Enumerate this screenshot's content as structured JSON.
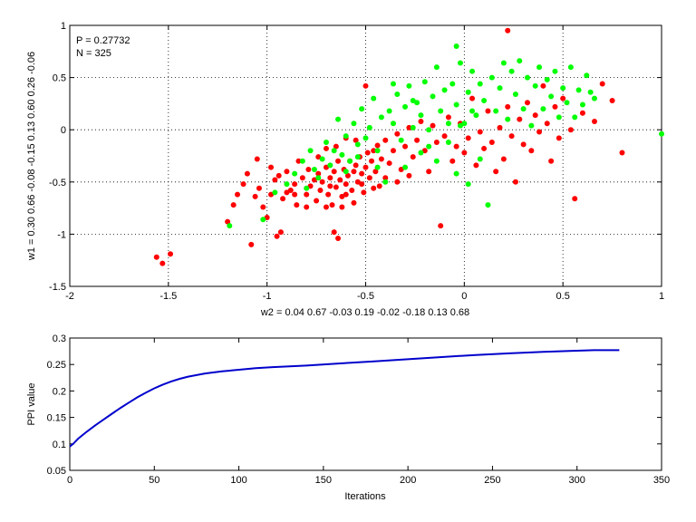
{
  "chart_data": [
    {
      "type": "scatter",
      "annotation_p": "P = 0.27732",
      "annotation_n": "N = 325",
      "xlabel": "w2 = 0.04  0.67  -0.03  0.19  -0.02  -0.18  0.13  0.68",
      "ylabel": "w1 = 0.30  0.66  -0.08  -0.15  0.13  0.60  0.26  -0.06",
      "xlim": [
        -2,
        1
      ],
      "ylim": [
        -1.5,
        1
      ],
      "x_ticks": [
        "-2",
        "-1.5",
        "-1",
        "-0.5",
        "0",
        "0.5",
        "1"
      ],
      "y_ticks": [
        "-1.5",
        "-1",
        "-0.5",
        "0",
        "0.5",
        "1"
      ],
      "grid": true,
      "series": [
        {
          "color": "#ff0000",
          "points": [
            [
              -1.56,
              -1.22
            ],
            [
              -1.53,
              -1.28
            ],
            [
              -1.49,
              -1.19
            ],
            [
              -1.2,
              -0.88
            ],
            [
              -1.17,
              -0.72
            ],
            [
              -1.15,
              -0.62
            ],
            [
              -1.12,
              -0.52
            ],
            [
              -1.1,
              -0.42
            ],
            [
              -1.08,
              -1.1
            ],
            [
              -1.05,
              -0.28
            ],
            [
              -1.04,
              -0.56
            ],
            [
              -1.02,
              -0.74
            ],
            [
              -1.0,
              -0.84
            ],
            [
              -0.98,
              -0.36
            ],
            [
              -0.96,
              -0.48
            ],
            [
              -0.95,
              -1.02
            ],
            [
              -0.93,
              -0.98
            ],
            [
              -0.92,
              -0.66
            ],
            [
              -0.9,
              -0.4
            ],
            [
              -0.88,
              -0.58
            ],
            [
              -0.86,
              -0.52
            ],
            [
              -0.85,
              -0.72
            ],
            [
              -0.84,
              -0.3
            ],
            [
              -0.82,
              -0.46
            ],
            [
              -0.8,
              -0.62
            ],
            [
              -0.79,
              -0.38
            ],
            [
              -0.78,
              -0.54
            ],
            [
              -0.76,
              -0.48
            ],
            [
              -0.75,
              -0.68
            ],
            [
              -0.74,
              -0.42
            ],
            [
              -0.73,
              -0.58
            ],
            [
              -0.72,
              -0.5
            ],
            [
              -0.7,
              -0.36
            ],
            [
              -0.69,
              -0.62
            ],
            [
              -0.68,
              -0.46
            ],
            [
              -0.67,
              -0.72
            ],
            [
              -0.66,
              -0.4
            ],
            [
              -0.65,
              -0.55
            ],
            [
              -0.64,
              -0.3
            ],
            [
              -0.63,
              -0.48
            ],
            [
              -0.62,
              -0.64
            ],
            [
              -0.61,
              -0.38
            ],
            [
              -0.6,
              -0.52
            ],
            [
              -0.59,
              -0.44
            ],
            [
              -0.58,
              -0.3
            ],
            [
              -0.57,
              -0.58
            ],
            [
              -0.56,
              -0.4
            ],
            [
              -0.55,
              -0.34
            ],
            [
              -0.54,
              -0.5
            ],
            [
              -0.53,
              -0.26
            ],
            [
              -0.52,
              -0.42
            ],
            [
              -0.51,
              -0.6
            ],
            [
              -0.5,
              -0.36
            ],
            [
              -0.49,
              -0.22
            ],
            [
              -0.48,
              -0.46
            ],
            [
              -0.47,
              -0.3
            ],
            [
              -0.46,
              -0.2
            ],
            [
              -0.45,
              -0.4
            ],
            [
              -0.44,
              -0.15
            ],
            [
              -0.43,
              -0.54
            ],
            [
              -0.42,
              -0.28
            ],
            [
              -0.4,
              -0.1
            ],
            [
              -0.38,
              -0.32
            ],
            [
              -0.36,
              -0.2
            ],
            [
              -0.34,
              -0.04
            ],
            [
              -0.32,
              -0.38
            ],
            [
              -0.3,
              -0.16
            ],
            [
              -0.28,
              0.02
            ],
            [
              -0.26,
              -0.26
            ],
            [
              -0.24,
              -0.1
            ],
            [
              -0.22,
              0.08
            ],
            [
              -0.2,
              -0.2
            ],
            [
              -0.18,
              -0.4
            ],
            [
              -0.16,
              0.04
            ],
            [
              -0.14,
              -0.12
            ],
            [
              -0.12,
              -0.92
            ],
            [
              -0.1,
              -0.06
            ],
            [
              -0.08,
              0.12
            ],
            [
              -0.06,
              -0.3
            ],
            [
              -0.04,
              -0.16
            ],
            [
              -0.02,
              0.06
            ],
            [
              0.0,
              -0.22
            ],
            [
              0.02,
              -0.08
            ],
            [
              0.04,
              0.3
            ],
            [
              0.06,
              -0.34
            ],
            [
              0.08,
              -0.02
            ],
            [
              0.1,
              -0.18
            ],
            [
              0.12,
              0.18
            ],
            [
              0.14,
              -0.12
            ],
            [
              0.16,
              -0.4
            ],
            [
              0.18,
              0.02
            ],
            [
              0.2,
              -0.28
            ],
            [
              0.22,
              0.22
            ],
            [
              0.22,
              0.95
            ],
            [
              0.24,
              -0.06
            ],
            [
              0.26,
              -0.5
            ],
            [
              0.28,
              0.1
            ],
            [
              0.3,
              -0.14
            ],
            [
              0.32,
              0.26
            ],
            [
              0.34,
              -0.2
            ],
            [
              0.36,
              0.14
            ],
            [
              0.38,
              -0.02
            ],
            [
              0.4,
              0.42
            ],
            [
              0.42,
              0.06
            ],
            [
              0.44,
              -0.3
            ],
            [
              0.46,
              0.22
            ],
            [
              0.48,
              -0.08
            ],
            [
              0.5,
              0.3
            ],
            [
              0.54,
              0.0
            ],
            [
              0.56,
              -0.66
            ],
            [
              0.6,
              0.16
            ],
            [
              0.66,
              0.08
            ],
            [
              0.7,
              0.44
            ],
            [
              0.75,
              0.28
            ],
            [
              0.8,
              -0.22
            ],
            [
              -0.9,
              -0.6
            ],
            [
              -0.8,
              -0.74
            ],
            [
              -0.7,
              -0.74
            ],
            [
              -0.62,
              -0.74
            ],
            [
              -0.56,
              -0.7
            ],
            [
              -0.64,
              -1.04
            ],
            [
              -0.66,
              -0.98
            ],
            [
              -0.74,
              -0.26
            ],
            [
              -0.55,
              -0.1
            ],
            [
              -0.65,
              -0.16
            ],
            [
              -0.5,
              0.42
            ],
            [
              -0.6,
              -0.08
            ],
            [
              -0.7,
              -0.18
            ],
            [
              -0.98,
              -0.62
            ],
            [
              -1.06,
              -0.64
            ],
            [
              -0.94,
              -0.44
            ],
            [
              -0.86,
              -0.62
            ],
            [
              -0.68,
              -0.54
            ],
            [
              -0.6,
              -0.62
            ],
            [
              -0.52,
              -0.52
            ],
            [
              -0.46,
              -0.56
            ],
            [
              -0.4,
              -0.46
            ],
            [
              -0.34,
              -0.5
            ],
            [
              -0.28,
              -0.44
            ]
          ]
        },
        {
          "color": "#00ff00",
          "points": [
            [
              -1.19,
              -0.92
            ],
            [
              -1.02,
              -0.86
            ],
            [
              -0.96,
              -0.6
            ],
            [
              -0.9,
              -0.52
            ],
            [
              -0.86,
              -0.42
            ],
            [
              -0.82,
              -0.3
            ],
            [
              -0.8,
              -0.56
            ],
            [
              -0.78,
              -0.2
            ],
            [
              -0.76,
              -0.38
            ],
            [
              -0.74,
              -0.46
            ],
            [
              -0.72,
              -0.28
            ],
            [
              -0.7,
              -0.12
            ],
            [
              -0.68,
              -0.34
            ],
            [
              -0.66,
              -0.2
            ],
            [
              -0.64,
              0.1
            ],
            [
              -0.62,
              -0.24
            ],
            [
              -0.6,
              -0.06
            ],
            [
              -0.58,
              -0.3
            ],
            [
              -0.56,
              0.06
            ],
            [
              -0.54,
              -0.14
            ],
            [
              -0.52,
              0.2
            ],
            [
              -0.5,
              -0.08
            ],
            [
              -0.48,
              0.02
            ],
            [
              -0.46,
              0.3
            ],
            [
              -0.44,
              -0.2
            ],
            [
              -0.42,
              0.12
            ],
            [
              -0.4,
              -0.5
            ],
            [
              -0.38,
              0.18
            ],
            [
              -0.36,
              0.06
            ],
            [
              -0.34,
              0.34
            ],
            [
              -0.32,
              -0.1
            ],
            [
              -0.3,
              0.22
            ],
            [
              -0.28,
              0.42
            ],
            [
              -0.26,
              0.02
            ],
            [
              -0.24,
              0.26
            ],
            [
              -0.22,
              0.14
            ],
            [
              -0.2,
              0.46
            ],
            [
              -0.18,
              0.0
            ],
            [
              -0.16,
              0.32
            ],
            [
              -0.14,
              0.6
            ],
            [
              -0.12,
              0.18
            ],
            [
              -0.1,
              0.38
            ],
            [
              -0.08,
              -0.12
            ],
            [
              -0.06,
              0.44
            ],
            [
              -0.04,
              0.24
            ],
            [
              -0.02,
              0.64
            ],
            [
              0.0,
              0.06
            ],
            [
              0.02,
              0.36
            ],
            [
              0.04,
              0.56
            ],
            [
              0.06,
              0.14
            ],
            [
              0.08,
              0.44
            ],
            [
              0.1,
              0.28
            ],
            [
              0.12,
              -0.72
            ],
            [
              0.14,
              0.5
            ],
            [
              0.16,
              0.18
            ],
            [
              0.18,
              0.4
            ],
            [
              0.2,
              0.64
            ],
            [
              0.22,
              0.1
            ],
            [
              0.24,
              0.56
            ],
            [
              0.26,
              0.34
            ],
            [
              0.28,
              0.66
            ],
            [
              0.3,
              0.2
            ],
            [
              0.32,
              0.5
            ],
            [
              0.34,
              0.04
            ],
            [
              0.36,
              0.42
            ],
            [
              0.38,
              0.6
            ],
            [
              0.4,
              0.2
            ],
            [
              0.42,
              0.48
            ],
            [
              0.44,
              0.32
            ],
            [
              0.46,
              0.56
            ],
            [
              0.48,
              0.12
            ],
            [
              0.5,
              0.4
            ],
            [
              0.52,
              0.26
            ],
            [
              0.54,
              0.6
            ],
            [
              0.56,
              0.12
            ],
            [
              0.58,
              0.38
            ],
            [
              0.6,
              0.24
            ],
            [
              0.62,
              0.52
            ],
            [
              0.64,
              0.36
            ],
            [
              0.66,
              0.3
            ],
            [
              1.0,
              -0.04
            ],
            [
              -0.14,
              -0.3
            ],
            [
              -0.04,
              -0.42
            ],
            [
              0.02,
              -0.52
            ],
            [
              -0.22,
              -0.22
            ],
            [
              0.08,
              -0.28
            ],
            [
              -0.3,
              -0.36
            ],
            [
              -0.44,
              -0.36
            ],
            [
              -0.54,
              -0.26
            ],
            [
              -0.6,
              -0.4
            ],
            [
              -0.18,
              -0.16
            ],
            [
              -0.08,
              0.06
            ],
            [
              0.04,
              0.18
            ],
            [
              -0.26,
              0.28
            ],
            [
              -0.36,
              0.44
            ],
            [
              -0.04,
              0.8
            ],
            [
              -0.02,
              0.04
            ]
          ]
        }
      ]
    },
    {
      "type": "line",
      "xlabel": "Iterations",
      "ylabel": "PPI value",
      "xlim": [
        0,
        350
      ],
      "ylim": [
        0.05,
        0.3
      ],
      "x_ticks": [
        "0",
        "50",
        "100",
        "150",
        "200",
        "250",
        "300",
        "350"
      ],
      "y_ticks": [
        "0.05",
        "0.1",
        "0.15",
        "0.2",
        "0.25",
        "0.3"
      ],
      "grid": false,
      "series": [
        {
          "color": "#0000cc",
          "x": [
            0,
            2,
            5,
            10,
            15,
            20,
            25,
            30,
            35,
            40,
            45,
            50,
            55,
            60,
            65,
            70,
            75,
            80,
            90,
            100,
            110,
            120,
            140,
            160,
            180,
            200,
            220,
            240,
            260,
            280,
            300,
            310,
            325
          ],
          "y": [
            0.095,
            0.1,
            0.11,
            0.123,
            0.135,
            0.146,
            0.157,
            0.168,
            0.178,
            0.188,
            0.197,
            0.205,
            0.212,
            0.218,
            0.223,
            0.227,
            0.23,
            0.233,
            0.237,
            0.24,
            0.243,
            0.245,
            0.248,
            0.252,
            0.256,
            0.26,
            0.264,
            0.268,
            0.271,
            0.274,
            0.276,
            0.277,
            0.277
          ]
        }
      ]
    }
  ]
}
